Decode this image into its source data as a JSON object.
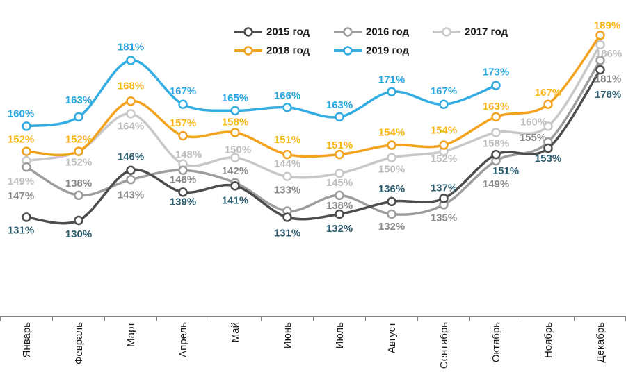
{
  "chart_data": {
    "type": "line",
    "title": "",
    "xlabel": "",
    "ylabel": "",
    "value_suffix": "%",
    "grid": false,
    "legend_position": "top",
    "ylim": [
      125,
      195
    ],
    "categories": [
      "Январь",
      "Февраль",
      "Март",
      "Апрель",
      "Май",
      "Июнь",
      "Июль",
      "Август",
      "Сентябрь",
      "Октябрь",
      "Ноябрь",
      "Декабрь"
    ],
    "series": [
      {
        "name": "2015 год",
        "values": [
          131,
          130,
          146,
          139,
          141,
          131,
          132,
          136,
          137,
          151,
          153,
          178
        ],
        "line_color": "#4D4D4D",
        "label_color": "#2E5E70",
        "label_offsets": [
          [
            -8,
            19
          ],
          [
            0,
            20
          ],
          [
            0,
            -19
          ],
          [
            0,
            14
          ],
          [
            0,
            21
          ],
          [
            0,
            23
          ],
          [
            0,
            21
          ],
          [
            0,
            -18
          ],
          [
            0,
            -15
          ],
          [
            14,
            24
          ],
          [
            0,
            15
          ],
          [
            11,
            36
          ]
        ]
      },
      {
        "name": "2016 год",
        "values": [
          147,
          138,
          143,
          146,
          142,
          133,
          138,
          132,
          135,
          149,
          155,
          181
        ],
        "line_color": "#9D9D9D",
        "label_color": "#8A8A8A",
        "label_offsets": [
          [
            -8,
            42
          ],
          [
            0,
            -17
          ],
          [
            0,
            22
          ],
          [
            0,
            14
          ],
          [
            0,
            -17
          ],
          [
            0,
            -30
          ],
          [
            0,
            15
          ],
          [
            0,
            18
          ],
          [
            0,
            19
          ],
          [
            0,
            34
          ],
          [
            -22,
            -6
          ],
          [
            11,
            27
          ]
        ]
      },
      {
        "name": "2017 год",
        "values": [
          149,
          152,
          164,
          148,
          150,
          144,
          145,
          150,
          152,
          158,
          160,
          186
        ],
        "line_color": "#C8C8C8",
        "label_color": "#BEBEBE",
        "label_offsets": [
          [
            -8,
            30
          ],
          [
            0,
            16
          ],
          [
            0,
            18
          ],
          [
            8,
            -13
          ],
          [
            4,
            -11
          ],
          [
            0,
            -18
          ],
          [
            0,
            14
          ],
          [
            0,
            17
          ],
          [
            0,
            11
          ],
          [
            0,
            16
          ],
          [
            -21,
            -6
          ],
          [
            12,
            13
          ]
        ]
      },
      {
        "name": "2018 год",
        "values": [
          152,
          152,
          168,
          157,
          158,
          151,
          151,
          154,
          154,
          163,
          167,
          189
        ],
        "line_color": "#F2A21D",
        "label_color": "#F8B517",
        "label_offsets": [
          [
            -8,
            -17
          ],
          [
            0,
            -17
          ],
          [
            0,
            -22
          ],
          [
            0,
            -18
          ],
          [
            0,
            -15
          ],
          [
            0,
            -21
          ],
          [
            0,
            -13
          ],
          [
            0,
            -18
          ],
          [
            0,
            -21
          ],
          [
            0,
            -15
          ],
          [
            0,
            -17
          ],
          [
            10,
            -14
          ]
        ]
      },
      {
        "name": "2019 год",
        "values": [
          160,
          163,
          181,
          167,
          165,
          166,
          163,
          171,
          167,
          173,
          null,
          null
        ],
        "line_color": "#33ADE1",
        "label_color": "#29A8DF",
        "label_offsets": [
          [
            -8,
            -18
          ],
          [
            0,
            -24
          ],
          [
            0,
            -19
          ],
          [
            0,
            -19
          ],
          [
            0,
            -18
          ],
          [
            0,
            -17
          ],
          [
            0,
            -17
          ],
          [
            0,
            -17
          ],
          [
            0,
            -19
          ],
          [
            0,
            -19
          ],
          [
            0,
            0
          ],
          [
            0,
            0
          ]
        ]
      }
    ],
    "legend_text_color": "#1A1A1A",
    "axis_color": "#808080",
    "tick_label_color": "#1A1A1A"
  }
}
